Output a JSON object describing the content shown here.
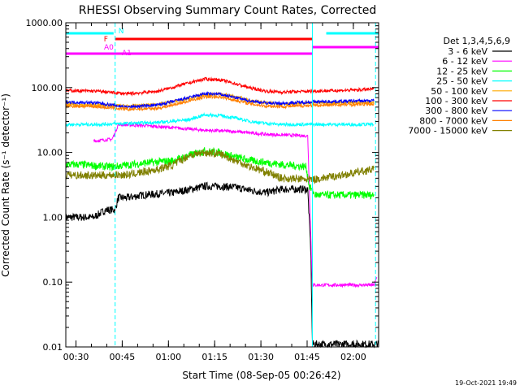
{
  "chart_data": {
    "type": "line",
    "title": "RHESSI Observing Summary Count Rates, Corrected",
    "xlabel": "Start Time (08-Sep-05 00:26:42)",
    "ylabel": "Corrected Count Rate (s⁻¹ detector⁻¹)",
    "yscale": "log",
    "ylim": [
      0.01,
      1000
    ],
    "xlim_minutes": [
      0.0,
      101.5
    ],
    "x_ticks": [
      {
        "label": "00:30",
        "minute": 3.3
      },
      {
        "label": "00:45",
        "minute": 18.3
      },
      {
        "label": "01:00",
        "minute": 33.3
      },
      {
        "label": "01:15",
        "minute": 48.3
      },
      {
        "label": "01:30",
        "minute": 63.3
      },
      {
        "label": "01:45",
        "minute": 78.3
      },
      {
        "label": "02:00",
        "minute": 93.3
      }
    ],
    "y_ticks": [
      {
        "label": "1000.00",
        "value": 1000
      },
      {
        "label": "100.00",
        "value": 100
      },
      {
        "label": "10.00",
        "value": 10
      },
      {
        "label": "1.00",
        "value": 1
      },
      {
        "label": "0.10",
        "value": 0.1
      },
      {
        "label": "0.01",
        "value": 0.01
      }
    ],
    "legend_title": "Det 1,3,4,5,6,9",
    "legend_position": "right",
    "series": [
      {
        "name": "3 - 6 keV",
        "color": "#000000",
        "points": [
          [
            0,
            1.0
          ],
          [
            9,
            1.0
          ],
          [
            13,
            1.3
          ],
          [
            16,
            1.3
          ],
          [
            17,
            2.0
          ],
          [
            20,
            2.0
          ],
          [
            25,
            2.2
          ],
          [
            35,
            2.4
          ],
          [
            45,
            3.0
          ],
          [
            50,
            3.0
          ],
          [
            55,
            2.9
          ],
          [
            60,
            2.6
          ],
          [
            65,
            2.4
          ],
          [
            70,
            2.7
          ],
          [
            75,
            2.7
          ],
          [
            78.5,
            2.7
          ],
          [
            79.5,
            0.3
          ],
          [
            80,
            0.011
          ],
          [
            101.5,
            0.011
          ]
        ]
      },
      {
        "name": "6 - 12 keV",
        "color": "#ff00ff",
        "points": [
          [
            9,
            15
          ],
          [
            15,
            16
          ],
          [
            16,
            20
          ],
          [
            17,
            27
          ],
          [
            25,
            26
          ],
          [
            35,
            24
          ],
          [
            45,
            22
          ],
          [
            55,
            21
          ],
          [
            65,
            19
          ],
          [
            78.5,
            18
          ],
          [
            79.5,
            0.5
          ],
          [
            80,
            0.09
          ],
          [
            100,
            0.09
          ],
          [
            101,
            0.12
          ]
        ]
      },
      {
        "name": "12 - 25 keV",
        "color": "#00ff00",
        "points": [
          [
            0,
            6.5
          ],
          [
            5,
            6.5
          ],
          [
            10,
            6.2
          ],
          [
            15,
            6.0
          ],
          [
            25,
            6.8
          ],
          [
            35,
            7.5
          ],
          [
            40,
            9.0
          ],
          [
            45,
            10.5
          ],
          [
            50,
            10.0
          ],
          [
            55,
            8.5
          ],
          [
            60,
            7.5
          ],
          [
            65,
            7.0
          ],
          [
            70,
            6.5
          ],
          [
            78,
            6.0
          ],
          [
            79,
            3.0
          ],
          [
            81,
            2.2
          ],
          [
            90,
            2.2
          ],
          [
            100,
            2.2
          ]
        ]
      },
      {
        "name": "25 - 50 keV",
        "color": "#00ffff",
        "points": [
          [
            0,
            27
          ],
          [
            10,
            27
          ],
          [
            20,
            28
          ],
          [
            30,
            29
          ],
          [
            40,
            32
          ],
          [
            45,
            38
          ],
          [
            50,
            37
          ],
          [
            55,
            34
          ],
          [
            60,
            30
          ],
          [
            65,
            28
          ],
          [
            70,
            27
          ],
          [
            80,
            27
          ],
          [
            100,
            27
          ]
        ]
      },
      {
        "name": "50 - 100 keV",
        "color": "#ffaa00",
        "points": [
          [
            0,
            55
          ],
          [
            10,
            54
          ],
          [
            20,
            52
          ],
          [
            30,
            55
          ],
          [
            40,
            68
          ],
          [
            45,
            78
          ],
          [
            50,
            80
          ],
          [
            55,
            72
          ],
          [
            60,
            63
          ],
          [
            65,
            58
          ],
          [
            70,
            56
          ],
          [
            80,
            58
          ],
          [
            100,
            60
          ]
        ]
      },
      {
        "name": "100 - 300 keV",
        "color": "#ff0000",
        "points": [
          [
            0,
            90
          ],
          [
            10,
            88
          ],
          [
            20,
            80
          ],
          [
            30,
            88
          ],
          [
            40,
            118
          ],
          [
            45,
            135
          ],
          [
            50,
            132
          ],
          [
            55,
            115
          ],
          [
            60,
            98
          ],
          [
            65,
            88
          ],
          [
            70,
            85
          ],
          [
            80,
            88
          ],
          [
            95,
            92
          ],
          [
            100,
            95
          ]
        ]
      },
      {
        "name": "300 - 800 keV",
        "color": "#0000ff",
        "points": [
          [
            0,
            60
          ],
          [
            10,
            58
          ],
          [
            20,
            50
          ],
          [
            30,
            54
          ],
          [
            40,
            70
          ],
          [
            45,
            80
          ],
          [
            50,
            79
          ],
          [
            55,
            70
          ],
          [
            60,
            62
          ],
          [
            65,
            58
          ],
          [
            70,
            57
          ],
          [
            80,
            60
          ],
          [
            100,
            63
          ]
        ]
      },
      {
        "name": "800 - 7000 keV",
        "color": "#ff8000",
        "points": [
          [
            0,
            52
          ],
          [
            10,
            51
          ],
          [
            20,
            46
          ],
          [
            30,
            48
          ],
          [
            40,
            62
          ],
          [
            45,
            72
          ],
          [
            50,
            72
          ],
          [
            55,
            64
          ],
          [
            60,
            56
          ],
          [
            65,
            52
          ],
          [
            70,
            51
          ],
          [
            80,
            53
          ],
          [
            100,
            56
          ]
        ]
      },
      {
        "name": "7000 - 15000 keV",
        "color": "#808000",
        "points": [
          [
            0,
            4.5
          ],
          [
            10,
            4.4
          ],
          [
            15,
            4.5
          ],
          [
            20,
            4.5
          ],
          [
            30,
            5.5
          ],
          [
            35,
            6.5
          ],
          [
            40,
            9.0
          ],
          [
            45,
            10.0
          ],
          [
            50,
            9.5
          ],
          [
            55,
            7.5
          ],
          [
            60,
            6.0
          ],
          [
            65,
            5.0
          ],
          [
            70,
            4.0
          ],
          [
            80,
            3.8
          ],
          [
            90,
            4.5
          ],
          [
            100,
            5.5
          ]
        ]
      }
    ],
    "status_bars": [
      {
        "name": "N",
        "color": "#00ffff",
        "segments": [
          [
            0,
            15.5
          ],
          [
            84.5,
            101.5
          ]
        ]
      },
      {
        "name": "F",
        "color": "#ff0000",
        "segments": [
          [
            16,
            80
          ]
        ]
      },
      {
        "name": "A0",
        "color": "#ff00ff",
        "segments": [
          [
            80,
            101.5
          ]
        ]
      },
      {
        "name": "A1",
        "color": "#ff00ff",
        "segments": [
          [
            0,
            80
          ]
        ]
      }
    ],
    "vertical_markers": [
      {
        "minute": 16.0,
        "color": "#00ffff",
        "style": "dashed"
      },
      {
        "minute": 80.0,
        "color": "#00ffff",
        "style": "solid"
      },
      {
        "minute": 100.5,
        "color": "#00ffff",
        "style": "dashed"
      }
    ]
  },
  "footer": {
    "timestamp": "19-Oct-2021 19:49"
  }
}
